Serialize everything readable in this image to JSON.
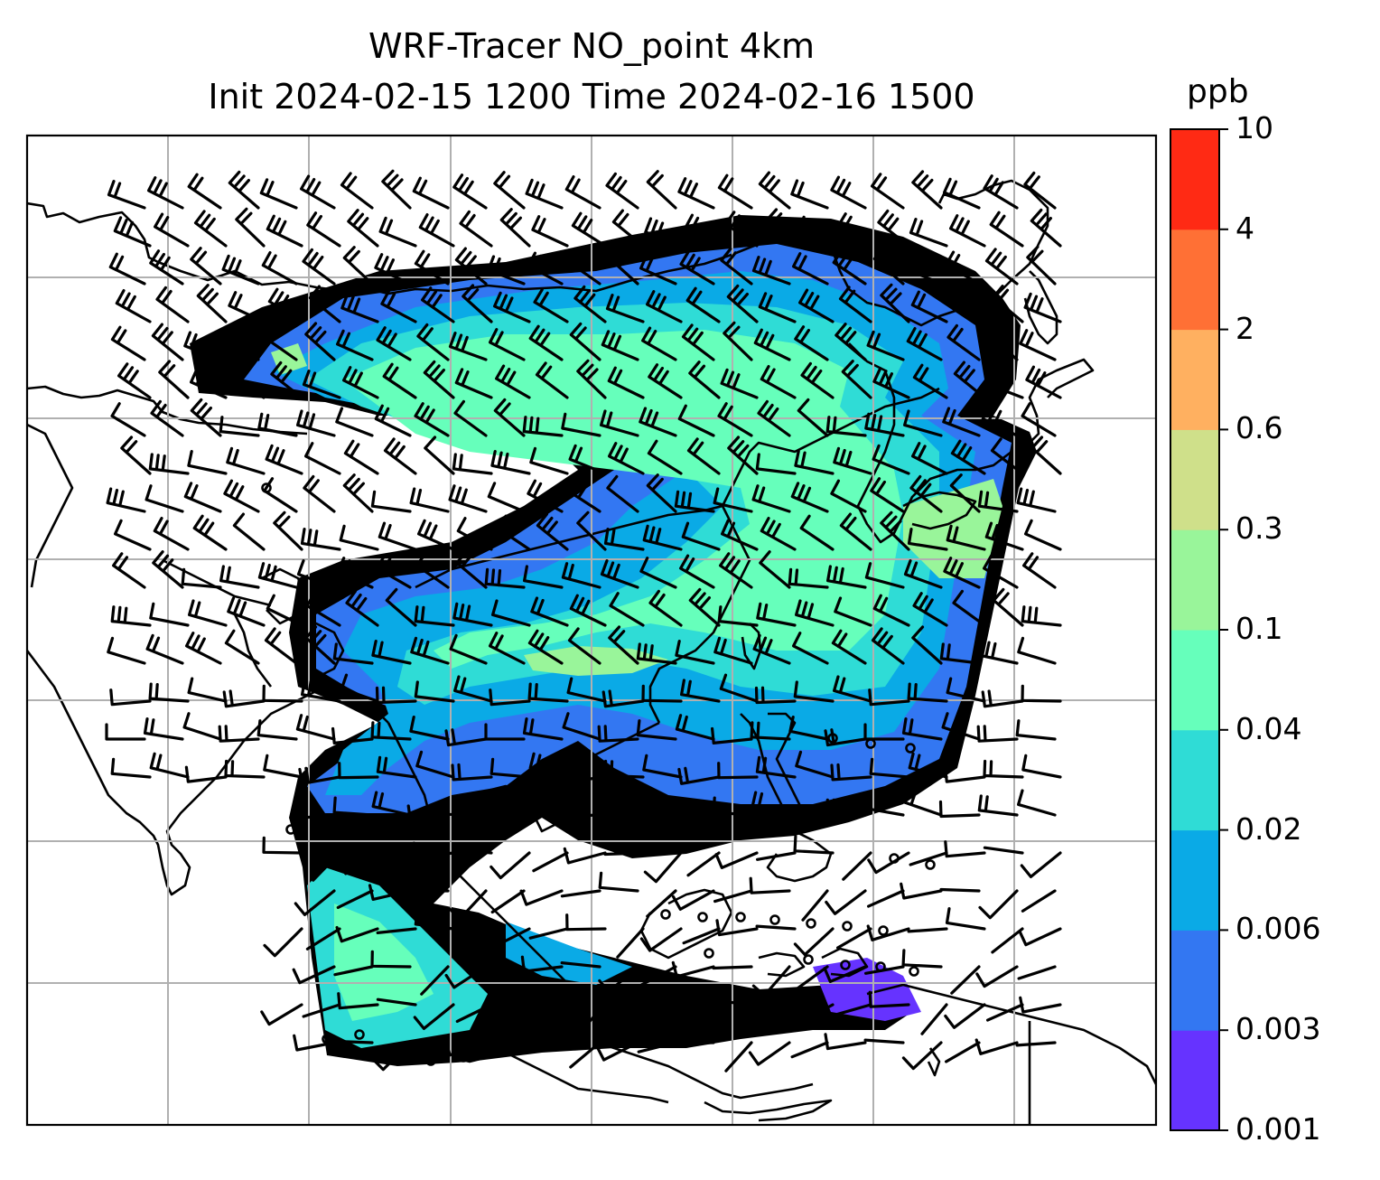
{
  "title": {
    "line1": "WRF-Tracer NO_point 4km",
    "line2": "Init 2024-02-15 1200 Time 2024-02-16 1500"
  },
  "colorbar": {
    "unit": "ppb",
    "levels": [
      "0.001",
      "0.003",
      "0.006",
      "0.02",
      "0.04",
      "0.1",
      "0.3",
      "0.6",
      "2",
      "4",
      "10"
    ],
    "colors": [
      "#6633ff",
      "#3377f2",
      "#0aaae6",
      "#2fdcd6",
      "#66ffbb",
      "#99f59a",
      "#cfe08a",
      "#ffb060",
      "#ff7035",
      "#ff2a14"
    ]
  },
  "map_style": {
    "gridlines": true,
    "grid_color": "#b0b0b0",
    "coastline_color": "#000000",
    "wind_barb_color": "#000000"
  }
}
